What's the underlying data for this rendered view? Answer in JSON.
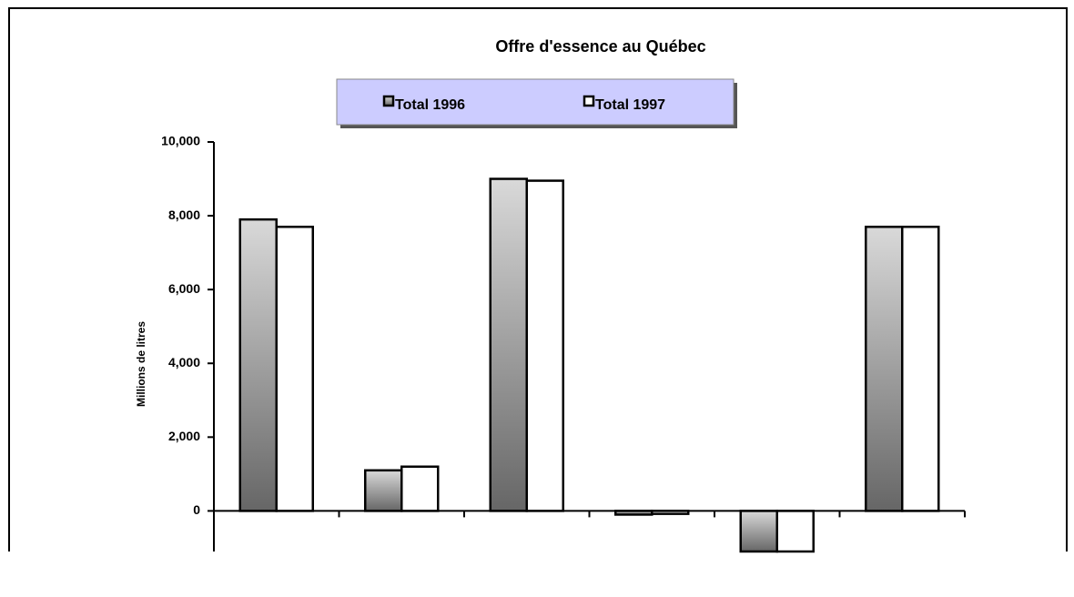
{
  "chart_data": {
    "type": "bar",
    "title": "Offre d'essence au Québec",
    "ylabel": "Millions de litres",
    "categories": [
      null,
      null,
      null,
      null,
      null,
      null
    ],
    "series": [
      {
        "name": "Total 1996",
        "color": "#666666",
        "values": [
          7900,
          1100,
          9000,
          -100,
          -1100,
          7700
        ]
      },
      {
        "name": "Total 1997",
        "color": "#ffffff",
        "values": [
          7700,
          1200,
          8950,
          -80,
          -1100,
          7700
        ]
      }
    ],
    "ylim": [
      -1100,
      10000
    ],
    "yticks": [
      0,
      {
        "value": 2000,
        "label": "2,000"
      },
      {
        "value": 4000,
        "label": "4,000"
      },
      {
        "value": 6000,
        "label": "6,000"
      },
      {
        "value": 8000,
        "label": "8,000"
      },
      {
        "value": 10000,
        "label": "10,000"
      }
    ],
    "grid": false,
    "legend": "top"
  }
}
